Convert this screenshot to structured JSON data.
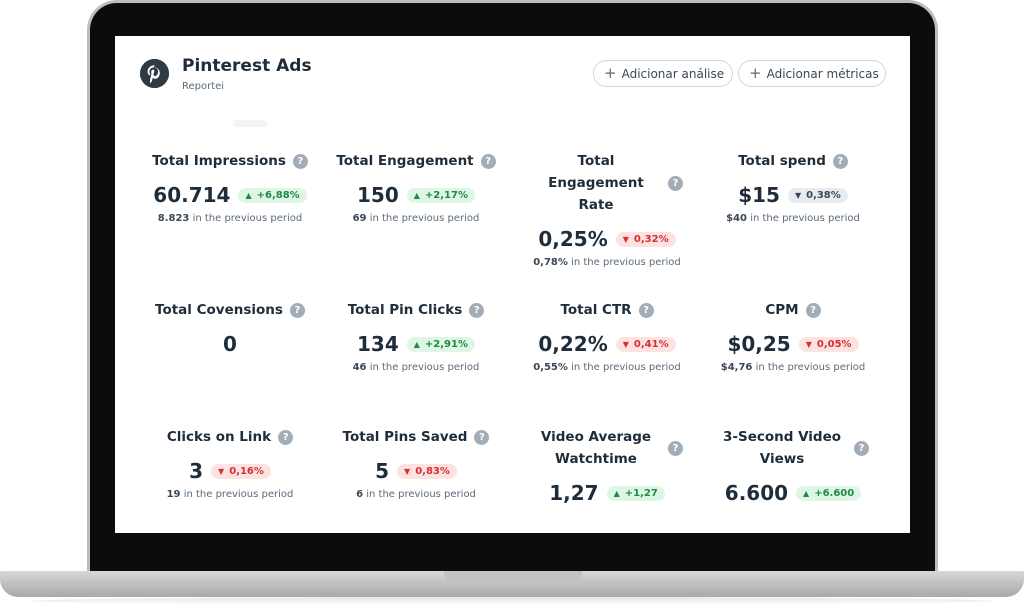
{
  "header": {
    "title": "Pinterest Ads",
    "subtitle": "Reportei",
    "btn_analysis": "Adicionar análise",
    "btn_metrics": "Adicionar métricas"
  },
  "colors": {
    "up_bg": "#dff5e6",
    "up_fg": "#1c8b45",
    "down_bg": "#fde2e2",
    "down_fg": "#d62f2f",
    "neutral_bg": "#e8ecf0",
    "text": "#1f2d3a"
  },
  "metrics": [
    {
      "title": "Total Impressions",
      "value": "60.714",
      "change": "+6,88%",
      "trend": "up",
      "prev_value": "8.823",
      "prev_text": "in the previous period"
    },
    {
      "title": "Total Engagement",
      "value": "150",
      "change": "+2,17%",
      "trend": "up",
      "prev_value": "69",
      "prev_text": "in the previous period"
    },
    {
      "title": "Total Engagement Rate",
      "value": "0,25%",
      "change": "0,32%",
      "trend": "down",
      "prev_value": "0,78%",
      "prev_text": "in the previous period"
    },
    {
      "title": "Total spend",
      "value": "$15",
      "change": "0,38%",
      "trend": "neutral",
      "prev_value": "$40",
      "prev_text": "in the previous period"
    },
    {
      "title": "Total Covensions",
      "value": "0"
    },
    {
      "title": "Total Pin Clicks",
      "value": "134",
      "change": "+2,91%",
      "trend": "up",
      "prev_value": "46",
      "prev_text": "in the previous period"
    },
    {
      "title": "Total CTR",
      "value": "0,22%",
      "change": "0,41%",
      "trend": "down",
      "prev_value": "0,55%",
      "prev_text": "in the previous period"
    },
    {
      "title": "CPM",
      "value": "$0,25",
      "change": "0,05%",
      "trend": "down",
      "prev_value": "$4,76",
      "prev_text": "in the previous period"
    },
    {
      "title": "Clicks on Link",
      "value": "3",
      "change": "0,16%",
      "trend": "down",
      "prev_value": "19",
      "prev_text": "in the previous period"
    },
    {
      "title": "Total Pins Saved",
      "value": "5",
      "change": "0,83%",
      "trend": "down",
      "prev_value": "6",
      "prev_text": "in the previous period"
    },
    {
      "title": "Video Average Watchtime",
      "value": "1,27",
      "change": "+1,27",
      "trend": "up"
    },
    {
      "title": "3-Second Video Views",
      "value": "6.600",
      "change": "+6.600",
      "trend": "up"
    }
  ]
}
